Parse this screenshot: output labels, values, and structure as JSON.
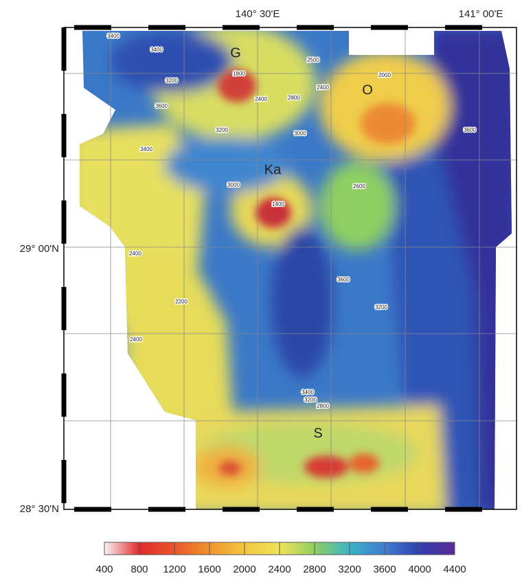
{
  "map": {
    "top_labels": [
      "140° 30'E",
      "141° 00'E"
    ],
    "left_labels": [
      "29° 00'N",
      "28° 30'N"
    ],
    "features": [
      "G",
      "O",
      "Ka",
      "S"
    ],
    "contour_labels": [
      "3400",
      "3400",
      "3600",
      "3200",
      "2500",
      "2400",
      "2400",
      "2800",
      "2000",
      "1800",
      "3000",
      "3200",
      "3400",
      "1400",
      "2400",
      "3000",
      "3200",
      "3600",
      "3400",
      "2800",
      "3200",
      "2600",
      "3600",
      "2400",
      "2200"
    ]
  },
  "colorbar": {
    "ticks": [
      400,
      800,
      1200,
      1600,
      2000,
      2400,
      2800,
      3200,
      3600,
      4000,
      4400
    ],
    "colors": [
      "#fbf3f6",
      "#e02a2a",
      "#e8562a",
      "#f0942c",
      "#f2c840",
      "#eee45a",
      "#8fcf62",
      "#3ab3c7",
      "#3f7dd0",
      "#2f3fae",
      "#5a2a96"
    ]
  }
}
